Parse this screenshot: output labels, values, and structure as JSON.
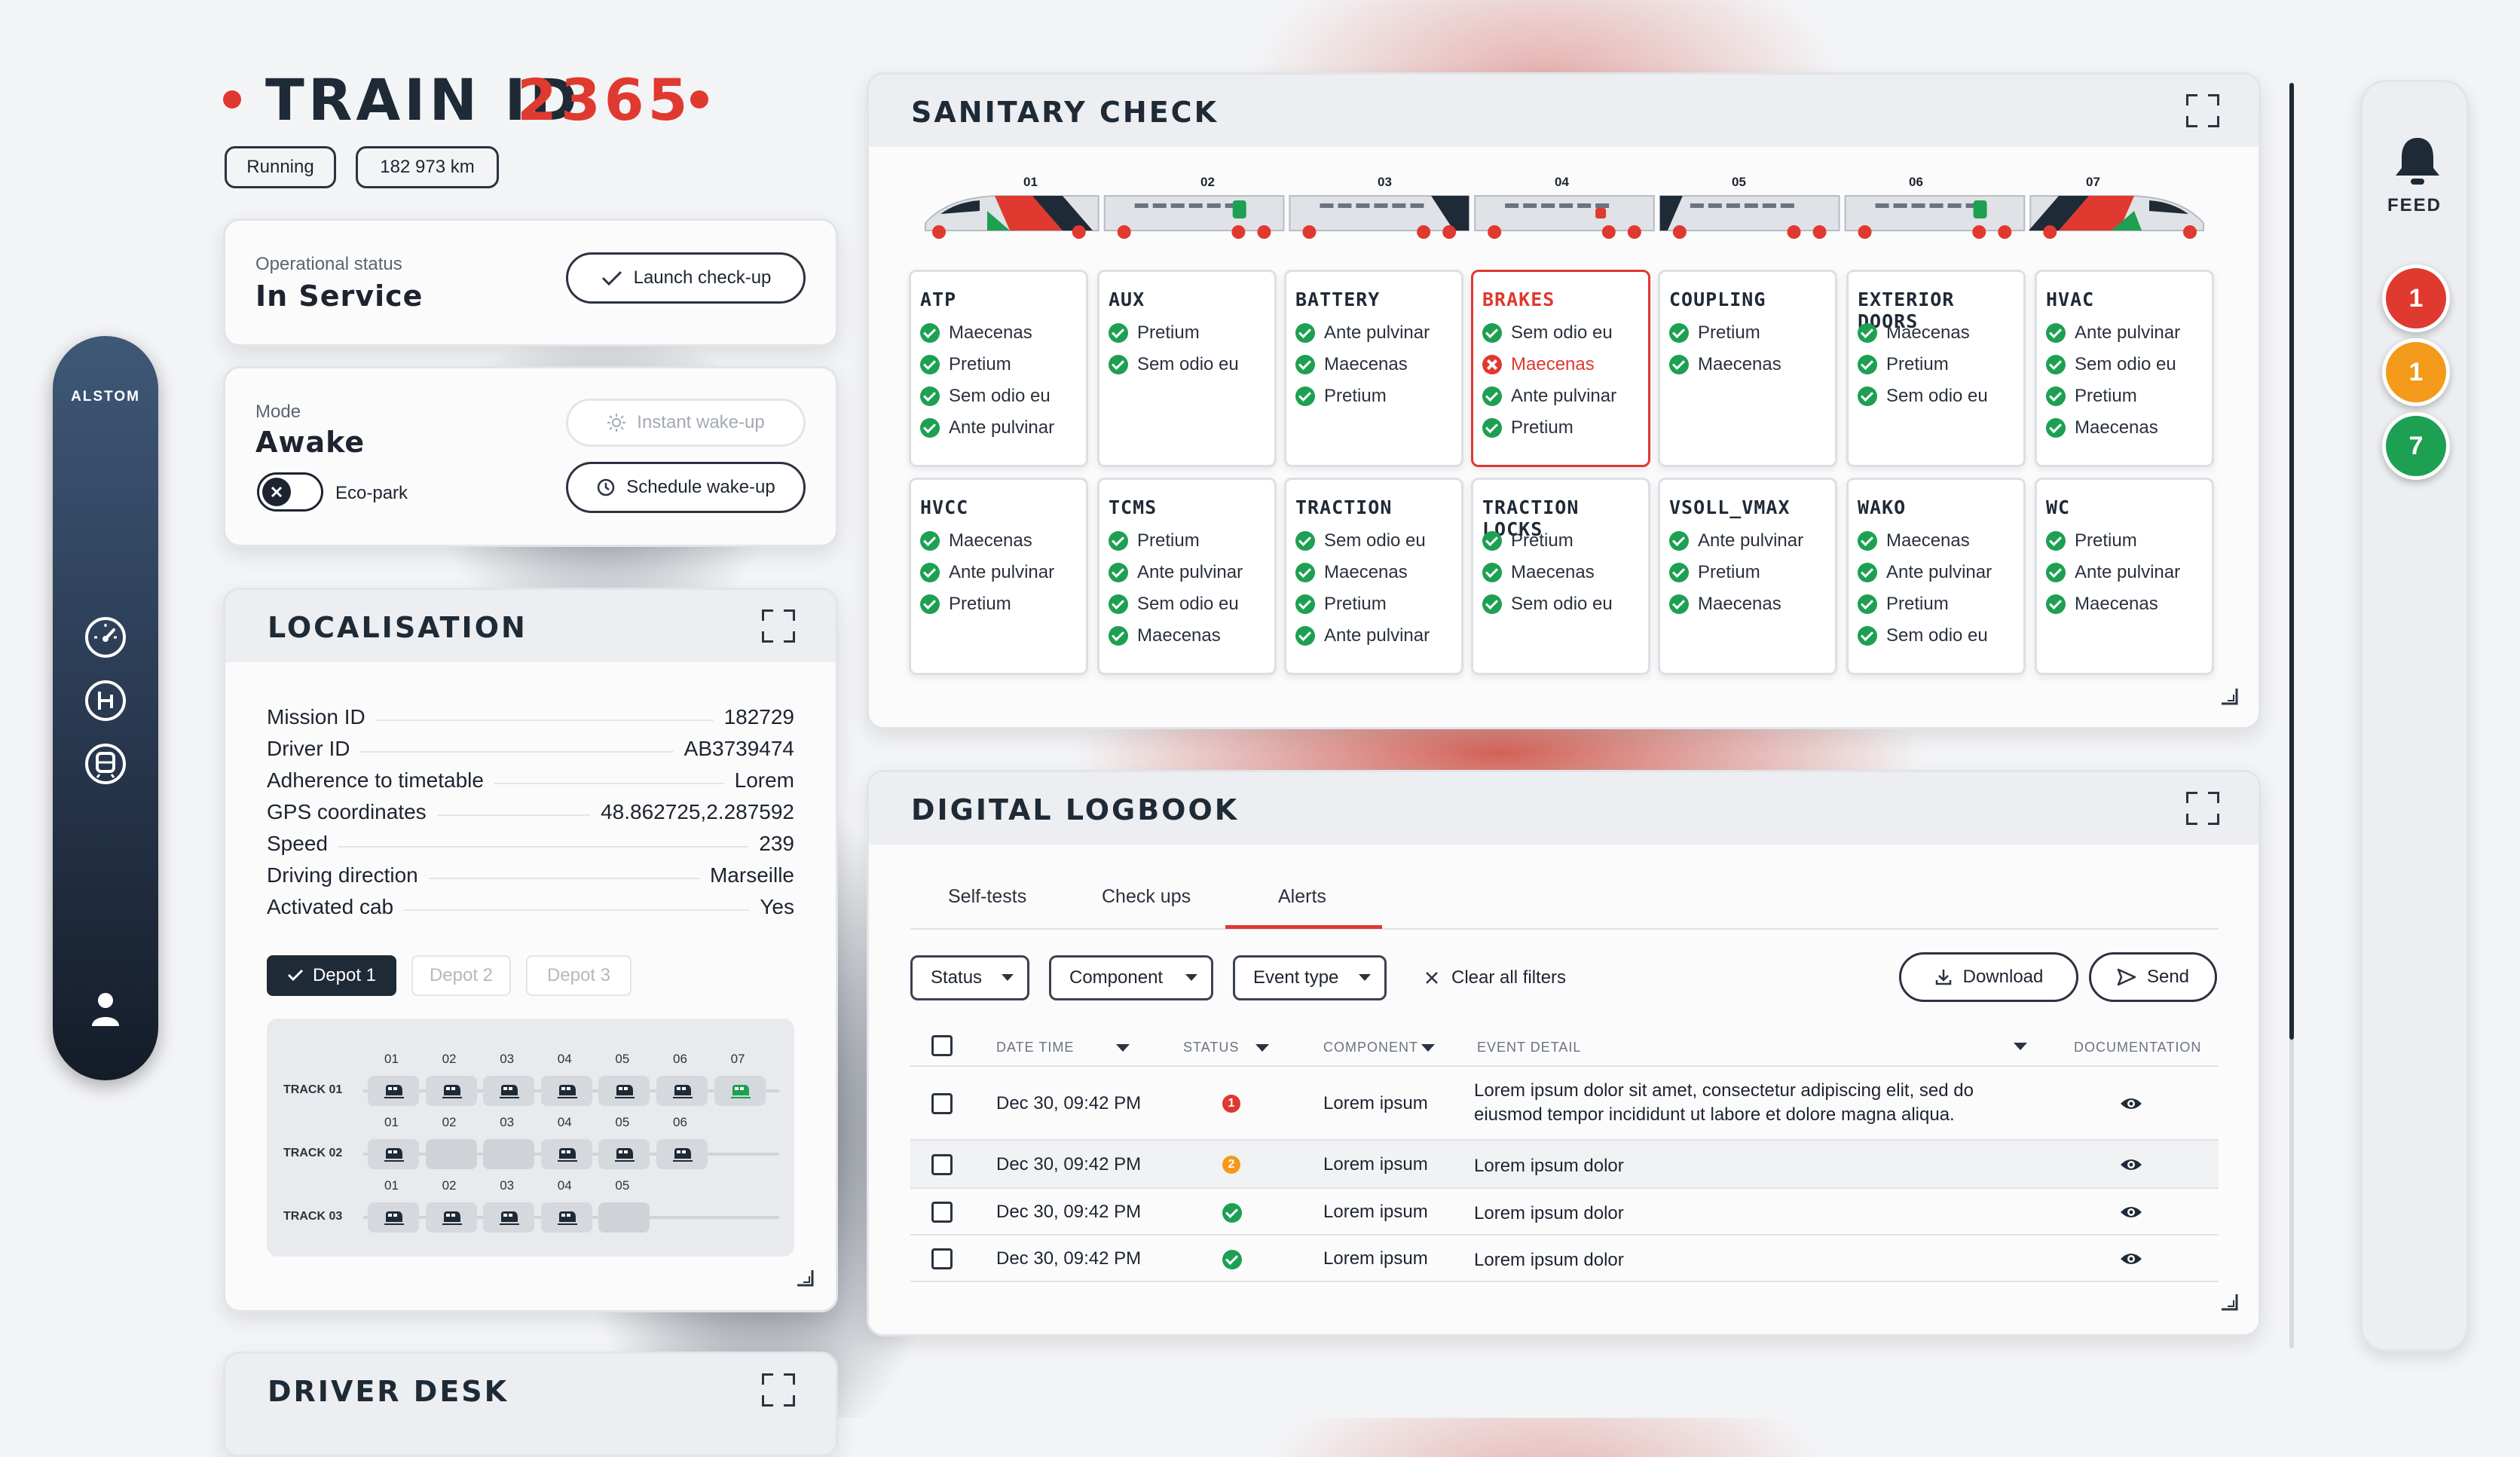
{
  "header": {
    "title_prefix": "TRAIN ID",
    "train_id": "2365",
    "badges": [
      "Running",
      "182 973 km"
    ]
  },
  "operational": {
    "label": "Operational status",
    "value": "In Service",
    "button": "Launch check-up"
  },
  "mode": {
    "label": "Mode",
    "value": "Awake",
    "toggle_label": "Eco-park",
    "instant_button": "Instant wake-up",
    "schedule_button": "Schedule wake-up"
  },
  "sidebar": {
    "brand": "ALSTOM",
    "icons": [
      "speedometer-icon",
      "brake-handle-icon",
      "train-icon",
      "user-icon"
    ]
  },
  "localisation": {
    "title": "LOCALISATION",
    "rows": [
      {
        "key": "Mission ID",
        "value": "182729"
      },
      {
        "key": "Driver ID",
        "value": "AB3739474"
      },
      {
        "key": "Adherence to timetable",
        "value": "Lorem"
      },
      {
        "key": "GPS coordinates",
        "value": "48.862725,2.287592"
      },
      {
        "key": "Speed",
        "value": "239"
      },
      {
        "key": "Driving direction",
        "value": "Marseille"
      },
      {
        "key": "Activated cab",
        "value": "Yes"
      }
    ],
    "depots": [
      "Depot 1",
      "Depot 2",
      "Depot 3"
    ],
    "tracks": [
      {
        "label": "TRACK 01",
        "slots": [
          "01",
          "02",
          "03",
          "04",
          "05",
          "06",
          "07"
        ]
      },
      {
        "label": "TRACK 02",
        "slots": [
          "01",
          "02",
          "03",
          "04",
          "05",
          "06"
        ]
      },
      {
        "label": "TRACK 03",
        "slots": [
          "01",
          "02",
          "03",
          "04",
          "05"
        ]
      }
    ]
  },
  "driver_desk": {
    "title": "DRIVER DESK"
  },
  "sanitary": {
    "title": "SANITARY CHECK",
    "cars": [
      "01",
      "02",
      "03",
      "04",
      "05",
      "06",
      "07"
    ],
    "systems": [
      {
        "name": "ATP",
        "items": [
          {
            "t": "Maecenas",
            "ok": true
          },
          {
            "t": "Pretium",
            "ok": true
          },
          {
            "t": "Sem odio eu",
            "ok": true
          },
          {
            "t": "Ante pulvinar",
            "ok": true
          }
        ]
      },
      {
        "name": "AUX",
        "items": [
          {
            "t": "Pretium",
            "ok": true
          },
          {
            "t": "Sem odio eu",
            "ok": true
          }
        ]
      },
      {
        "name": "BATTERY",
        "items": [
          {
            "t": "Ante pulvinar",
            "ok": true
          },
          {
            "t": "Maecenas",
            "ok": true
          },
          {
            "t": "Pretium",
            "ok": true
          }
        ]
      },
      {
        "name": "BRAKES",
        "alert": true,
        "items": [
          {
            "t": "Sem odio eu",
            "ok": true
          },
          {
            "t": "Maecenas",
            "ok": false
          },
          {
            "t": "Ante pulvinar",
            "ok": true
          },
          {
            "t": "Pretium",
            "ok": true
          }
        ]
      },
      {
        "name": "COUPLING",
        "items": [
          {
            "t": "Pretium",
            "ok": true
          },
          {
            "t": "Maecenas",
            "ok": true
          }
        ]
      },
      {
        "name": "EXTERIOR DOORS",
        "items": [
          {
            "t": "Maecenas",
            "ok": true
          },
          {
            "t": "Pretium",
            "ok": true
          },
          {
            "t": "Sem odio eu",
            "ok": true
          }
        ]
      },
      {
        "name": "HVAC",
        "items": [
          {
            "t": "Ante pulvinar",
            "ok": true
          },
          {
            "t": "Sem odio eu",
            "ok": true
          },
          {
            "t": "Pretium",
            "ok": true
          },
          {
            "t": "Maecenas",
            "ok": true
          }
        ]
      },
      {
        "name": "HVCC",
        "items": [
          {
            "t": "Maecenas",
            "ok": true
          },
          {
            "t": "Ante pulvinar",
            "ok": true
          },
          {
            "t": "Pretium",
            "ok": true
          }
        ]
      },
      {
        "name": "TCMS",
        "items": [
          {
            "t": "Pretium",
            "ok": true
          },
          {
            "t": "Ante pulvinar",
            "ok": true
          },
          {
            "t": "Sem odio eu",
            "ok": true
          },
          {
            "t": "Maecenas",
            "ok": true
          }
        ]
      },
      {
        "name": "TRACTION",
        "items": [
          {
            "t": "Sem odio eu",
            "ok": true
          },
          {
            "t": "Maecenas",
            "ok": true
          },
          {
            "t": "Pretium",
            "ok": true
          },
          {
            "t": "Ante pulvinar",
            "ok": true
          }
        ]
      },
      {
        "name": "TRACTION LOCKS",
        "items": [
          {
            "t": "Pretium",
            "ok": true
          },
          {
            "t": "Maecenas",
            "ok": true
          },
          {
            "t": "Sem odio eu",
            "ok": true
          }
        ]
      },
      {
        "name": "VSOLL_VMAX",
        "items": [
          {
            "t": "Ante pulvinar",
            "ok": true
          },
          {
            "t": "Pretium",
            "ok": true
          },
          {
            "t": "Maecenas",
            "ok": true
          }
        ]
      },
      {
        "name": "WAKO",
        "items": [
          {
            "t": "Maecenas",
            "ok": true
          },
          {
            "t": "Ante pulvinar",
            "ok": true
          },
          {
            "t": "Pretium",
            "ok": true
          },
          {
            "t": "Sem odio eu",
            "ok": true
          }
        ]
      },
      {
        "name": "WC",
        "items": [
          {
            "t": "Pretium",
            "ok": true
          },
          {
            "t": "Ante pulvinar",
            "ok": true
          },
          {
            "t": "Maecenas",
            "ok": true
          }
        ]
      }
    ]
  },
  "logbook": {
    "title": "DIGITAL LOGBOOK",
    "tabs": [
      "Self-tests",
      "Check ups",
      "Alerts"
    ],
    "active_tab": "Alerts",
    "filters": [
      "Status",
      "Component",
      "Event type"
    ],
    "clear_filters": "Clear all filters",
    "download": "Download",
    "send": "Send",
    "columns": [
      "DATE TIME",
      "STATUS",
      "COMPONENT",
      "EVENT DETAIL",
      "DOCUMENTATION"
    ],
    "rows": [
      {
        "datetime": "Dec 30, 09:42 PM",
        "status": "1",
        "status_color": "#e0392f",
        "component": "Lorem ipsum",
        "detail": "Lorem ipsum dolor sit amet, consectetur adipiscing elit, sed do eiusmod tempor incididunt ut labore et dolore magna aliqua."
      },
      {
        "datetime": "Dec 30, 09:42 PM",
        "status": "2",
        "status_color": "#f39a1b",
        "component": "Lorem ipsum",
        "detail": "Lorem ipsum dolor"
      },
      {
        "datetime": "Dec 30, 09:42 PM",
        "status": "",
        "status_color": "#1da052",
        "component": "Lorem ipsum",
        "detail": "Lorem ipsum dolor"
      },
      {
        "datetime": "Dec 30, 09:42 PM",
        "status": "",
        "status_color": "#1da052",
        "component": "Lorem ipsum",
        "detail": "Lorem ipsum dolor"
      }
    ]
  },
  "feed": {
    "label": "FEED",
    "badges": [
      {
        "count": "1",
        "color": "#e0392f"
      },
      {
        "count": "1",
        "color": "#f39a1b"
      },
      {
        "count": "7",
        "color": "#1da052"
      }
    ]
  },
  "colors": {
    "accent_red": "#e0392f",
    "navy": "#1f2a37",
    "ok_green": "#1da052",
    "warn_orange": "#f39a1b"
  }
}
